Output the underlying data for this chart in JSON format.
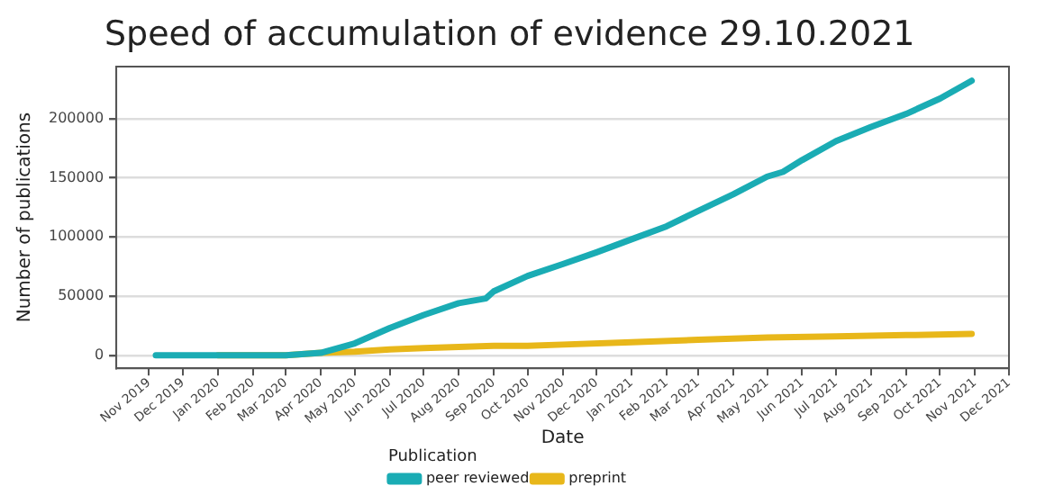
{
  "chart_data": {
    "type": "line",
    "title": "Speed of accumulation of evidence 29.10.2021",
    "xlabel": "Date",
    "ylabel": "Number of publications",
    "legend_title": "Publication",
    "xlim": [
      "2019-10-03",
      "2021-12-01"
    ],
    "xticks": [
      {
        "value": "2019-11-01",
        "label": "Nov 2019"
      },
      {
        "value": "2019-12-01",
        "label": "Dec 2019"
      },
      {
        "value": "2020-01-01",
        "label": "Jan 2020"
      },
      {
        "value": "2020-02-01",
        "label": "Feb 2020"
      },
      {
        "value": "2020-03-01",
        "label": "Mar 2020"
      },
      {
        "value": "2020-04-01",
        "label": "Apr 2020"
      },
      {
        "value": "2020-05-01",
        "label": "May 2020"
      },
      {
        "value": "2020-06-01",
        "label": "Jun 2020"
      },
      {
        "value": "2020-07-01",
        "label": "Jul 2020"
      },
      {
        "value": "2020-08-01",
        "label": "Aug 2020"
      },
      {
        "value": "2020-09-01",
        "label": "Sep 2020"
      },
      {
        "value": "2020-10-01",
        "label": "Oct 2020"
      },
      {
        "value": "2020-11-01",
        "label": "Nov 2020"
      },
      {
        "value": "2020-12-01",
        "label": "Dec 2020"
      },
      {
        "value": "2021-01-01",
        "label": "Jan 2021"
      },
      {
        "value": "2021-02-01",
        "label": "Feb 2021"
      },
      {
        "value": "2021-03-01",
        "label": "Mar 2021"
      },
      {
        "value": "2021-04-01",
        "label": "Apr 2021"
      },
      {
        "value": "2021-05-01",
        "label": "May 2021"
      },
      {
        "value": "2021-06-01",
        "label": "Jun 2021"
      },
      {
        "value": "2021-07-01",
        "label": "Jul 2021"
      },
      {
        "value": "2021-08-01",
        "label": "Aug 2021"
      },
      {
        "value": "2021-09-01",
        "label": "Sep 2021"
      },
      {
        "value": "2021-10-01",
        "label": "Oct 2021"
      },
      {
        "value": "2021-11-01",
        "label": "Nov 2021"
      },
      {
        "value": "2021-12-01",
        "label": "Dec 2021"
      }
    ],
    "ylim": [
      -11000,
      244000
    ],
    "yticks": [
      0,
      50000,
      100000,
      150000,
      200000
    ],
    "grid": "y",
    "legend": "bottom",
    "marker": "none",
    "line_style": "solid",
    "series": [
      {
        "name": "peer reviewed",
        "color": "#1aacb4",
        "x": [
          "2019-11-07",
          "2020-01-01",
          "2020-03-01",
          "2020-04-01",
          "2020-05-01",
          "2020-06-01",
          "2020-07-01",
          "2020-08-01",
          "2020-08-25",
          "2020-09-01",
          "2020-10-01",
          "2020-11-01",
          "2020-12-01",
          "2021-01-01",
          "2021-02-01",
          "2021-03-01",
          "2021-04-01",
          "2021-05-01",
          "2021-05-15",
          "2021-06-01",
          "2021-07-01",
          "2021-08-01",
          "2021-09-01",
          "2021-10-01",
          "2021-10-29"
        ],
        "values": [
          0,
          0,
          0,
          2000,
          10000,
          23000,
          34000,
          44000,
          48000,
          54000,
          67000,
          77000,
          87000,
          98000,
          109000,
          122000,
          136000,
          151000,
          155000,
          165000,
          181000,
          193000,
          204000,
          217000,
          232000
        ]
      },
      {
        "name": "preprint",
        "color": "#e8b71a",
        "x": [
          "2020-01-01",
          "2020-03-01",
          "2020-04-01",
          "2020-05-01",
          "2020-06-01",
          "2020-07-01",
          "2020-08-01",
          "2020-09-01",
          "2020-10-01",
          "2020-11-01",
          "2021-01-01",
          "2021-03-01",
          "2021-05-01",
          "2021-07-01",
          "2021-09-01",
          "2021-10-29"
        ],
        "values": [
          0,
          0,
          2000,
          3000,
          5000,
          6000,
          7000,
          8000,
          8000,
          9000,
          11000,
          13000,
          15000,
          16000,
          17000,
          18000
        ]
      }
    ]
  }
}
